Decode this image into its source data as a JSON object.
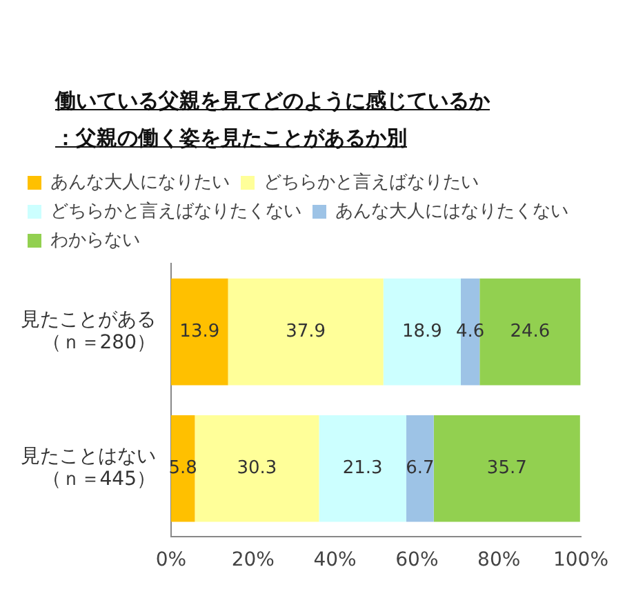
{
  "chart_data": {
    "type": "bar",
    "orientation": "horizontal",
    "stacked": true,
    "title": "働いている父親を見てどのように感じているか",
    "subtitle": "：父親の働く姿を見たことがあるか別",
    "categories": [
      "見たことがある（ｎ＝280）",
      "見たことはない（ｎ＝445）"
    ],
    "series": [
      {
        "name": "あんな大人になりたい",
        "color": "#ffc000",
        "values": [
          13.9,
          5.8
        ]
      },
      {
        "name": "どちらかと言えばなりたい",
        "color": "#ffff99",
        "values": [
          37.9,
          30.3
        ]
      },
      {
        "name": "どちらかと言えばなりたくない",
        "color": "#ccffff",
        "values": [
          18.9,
          21.3
        ]
      },
      {
        "name": "あんな大人にはなりたくない",
        "color": "#9dc3e6",
        "values": [
          4.6,
          6.7
        ]
      },
      {
        "name": "わからない",
        "color": "#92d050",
        "values": [
          24.6,
          35.7
        ]
      }
    ],
    "xlim": [
      0,
      100
    ],
    "xticks": [
      {
        "value": 0,
        "label": "0%"
      },
      {
        "value": 20,
        "label": "20%"
      },
      {
        "value": 40,
        "label": "40%"
      },
      {
        "value": 60,
        "label": "60%"
      },
      {
        "value": 80,
        "label": "80%"
      },
      {
        "value": 100,
        "label": "100%"
      }
    ],
    "data_labels": true,
    "grid": false,
    "legend": "top left"
  }
}
